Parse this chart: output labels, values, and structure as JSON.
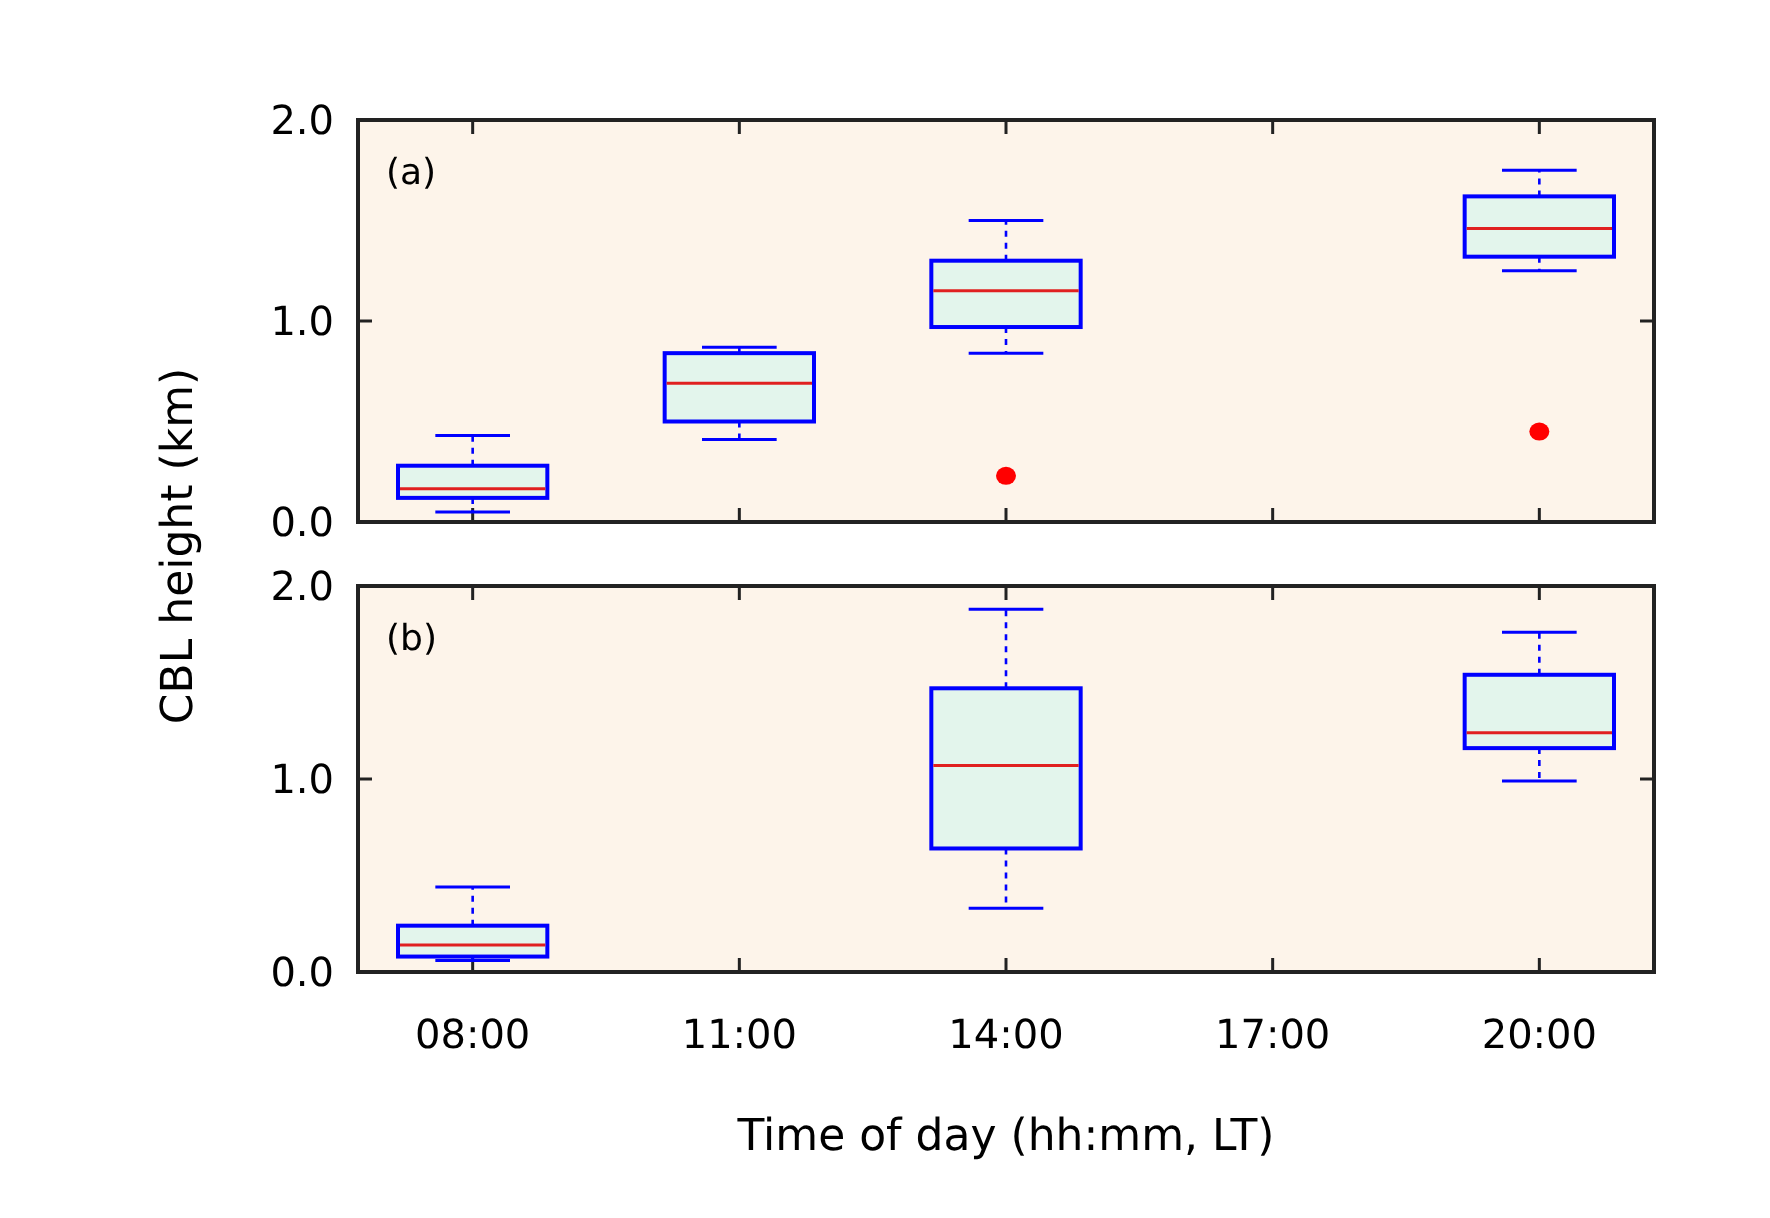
{
  "chart_data": [
    {
      "type": "box",
      "ylabel": "CBL height (km)",
      "annotations": [
        "(a)"
      ],
      "categories": [
        "08:00",
        "11:00",
        "14:00",
        "17:00",
        "20:00"
      ],
      "ylim": [
        0,
        2
      ],
      "yticks": [
        {
          "value": 0,
          "label": "0.0"
        },
        {
          "value": 1,
          "label": "1.0"
        },
        {
          "value": 2,
          "label": "2.0"
        }
      ],
      "tick_labels": "y",
      "grid": false,
      "series": [
        {
          "color": "#0000ff",
          "boxes": [
            {
              "low": 0.05,
              "q1": 0.12,
              "median": 0.165,
              "q3": 0.28,
              "high": 0.43
            },
            {
              "low": 0.41,
              "q1": 0.5,
              "median": 0.69,
              "q3": 0.84,
              "high": 0.87
            },
            {
              "low": 0.84,
              "q1": 0.97,
              "median": 1.15,
              "q3": 1.3,
              "high": 1.5,
              "outliers": [
                0.23
              ]
            },
            null,
            {
              "low": 1.25,
              "q1": 1.32,
              "median": 1.46,
              "q3": 1.62,
              "high": 1.75,
              "outliers": [
                0.45
              ]
            }
          ]
        }
      ]
    },
    {
      "type": "box",
      "xlabel": "Time of day (hh:mm, LT)",
      "annotations": [
        "(b)"
      ],
      "categories": [
        "08:00",
        "11:00",
        "14:00",
        "17:00",
        "20:00"
      ],
      "ylim": [
        0,
        2
      ],
      "yticks": [
        {
          "value": 0,
          "label": "0.0"
        },
        {
          "value": 1,
          "label": "1.0"
        },
        {
          "value": 2,
          "label": "2.0"
        }
      ],
      "grid": false,
      "series": [
        {
          "color": "#0000ff",
          "boxes": [
            {
              "low": 0.06,
              "q1": 0.08,
              "median": 0.14,
              "q3": 0.24,
              "high": 0.44
            },
            null,
            {
              "low": 0.33,
              "q1": 0.64,
              "median": 1.07,
              "q3": 1.47,
              "high": 1.88
            },
            null,
            {
              "low": 0.99,
              "q1": 1.16,
              "median": 1.24,
              "q3": 1.54,
              "high": 1.76
            }
          ]
        }
      ]
    }
  ]
}
